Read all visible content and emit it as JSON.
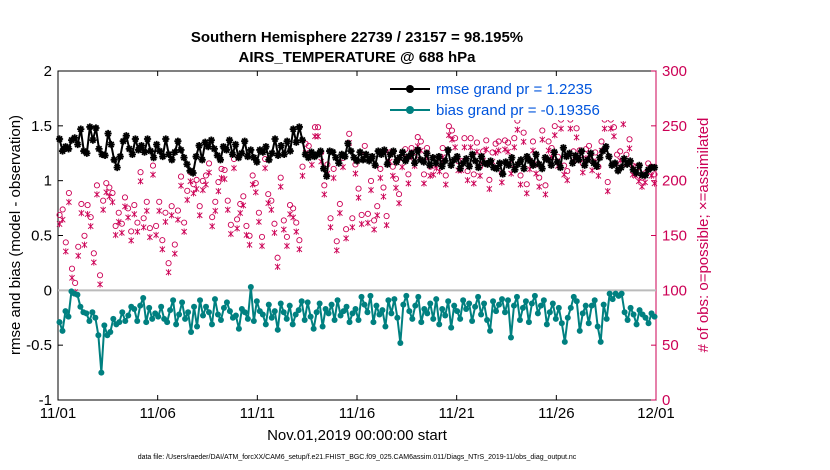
{
  "chart_data": {
    "type": "line",
    "title_line1": "Southern Hemisphere 22739 / 23157 = 98.195%",
    "title_line2": "AIRS_TEMPERATURE @ 688 hPa",
    "xlabel": "Nov.01,2019 00:00:00 start",
    "ylabel_left": "rmse and bias (model - observation)",
    "ylabel_right": "# of obs: o=possible; ×=assimilated",
    "footer": "data file: /Users/raeder/DAI/ATM_forcXX/CAM6_setup/f.e21.FHIST_BGC.f09_025.CAM6assim.011/Diags_NTrS_2019-11/obs_diag_output.nc",
    "x_ticks": [
      "11/01",
      "11/06",
      "11/11",
      "11/16",
      "11/21",
      "11/26",
      "12/01"
    ],
    "xlim": [
      0,
      30
    ],
    "ylim_left": [
      -1,
      2
    ],
    "y_ticks_left": [
      "-1",
      "-0.5",
      "0",
      "0.5",
      "1",
      "1.5",
      "2"
    ],
    "ylim_right": [
      0,
      300
    ],
    "y_ticks_right": [
      "0",
      "50",
      "100",
      "150",
      "200",
      "250",
      "300"
    ],
    "colors": {
      "rmse": "#000000",
      "bias": "#008080",
      "obs": "#cc0055",
      "zero_line": "#bbbbbb",
      "legend_text": "#0055dd"
    },
    "series": [
      {
        "name": "rmse grand pr = 1.2235",
        "axis": "left",
        "values": [
          1.38,
          1.27,
          1.31,
          1.29,
          1.37,
          1.39,
          1.33,
          1.47,
          1.27,
          1.25,
          1.49,
          1.37,
          1.48,
          1.29,
          1.24,
          1.23,
          1.43,
          1.33,
          1.19,
          1.12,
          1.22,
          1.36,
          1.41,
          1.29,
          1.24,
          1.38,
          1.28,
          1.32,
          1.26,
          1.38,
          1.27,
          1.21,
          1.33,
          1.27,
          1.22,
          1.38,
          1.24,
          1.19,
          1.26,
          1.36,
          1.28,
          1.21,
          1.15,
          1.09,
          1.07,
          1.22,
          1.32,
          1.19,
          1.35,
          1.31,
          1.37,
          1.29,
          1.23,
          1.19,
          1.31,
          1.28,
          1.37,
          1.24,
          1.33,
          1.21,
          1.25,
          1.36,
          1.22,
          1.28,
          1.21,
          1.17,
          1.28,
          1.26,
          1.31,
          1.19,
          1.25,
          1.38,
          1.23,
          1.32,
          1.24,
          1.36,
          1.27,
          1.47,
          1.35,
          1.49,
          1.37,
          1.24,
          1.21,
          1.26,
          1.22,
          1.24,
          1.27,
          1.11,
          1.04,
          1.27,
          1.26,
          1.21,
          1.16,
          1.24,
          1.22,
          1.34,
          1.27,
          1.21,
          1.18,
          1.26,
          1.19,
          1.24,
          1.18,
          1.22,
          1.14,
          1.27,
          1.24,
          1.28,
          1.15,
          1.24,
          1.27,
          1.17,
          1.21,
          1.26,
          1.18,
          1.22,
          1.25,
          1.16,
          1.28,
          1.19,
          1.17,
          1.25,
          1.14,
          1.21,
          1.16,
          1.22,
          1.13,
          1.18,
          1.28,
          1.14,
          1.19,
          1.22,
          1.11,
          1.16,
          1.2,
          1.13,
          1.24,
          1.18,
          1.12,
          1.22,
          1.16,
          1.15,
          1.18,
          1.12,
          1.11,
          1.16,
          1.06,
          1.17,
          1.14,
          1.21,
          1.1,
          1.15,
          1.19,
          1.11,
          1.22,
          1.18,
          1.14,
          1.24,
          1.15,
          1.11,
          1.21,
          1.19,
          1.14,
          1.26,
          1.17,
          1.12,
          1.3,
          1.22,
          1.25,
          1.16,
          1.23,
          1.19,
          1.27,
          1.14,
          1.19,
          1.25,
          1.16,
          1.13,
          1.21,
          1.27,
          1.31,
          1.22,
          1.14,
          1.16,
          1.09,
          1.12,
          1.2,
          1.15,
          1.18,
          1.1,
          1.07,
          1.14,
          1.05,
          1.05,
          1.1,
          1.12,
          1.12
        ]
      },
      {
        "name": "bias grand pr = -0.19356",
        "axis": "left",
        "values": [
          -0.29,
          -0.37,
          -0.19,
          -0.24,
          -0.01,
          -0.03,
          -0.04,
          -0.15,
          -0.2,
          -0.21,
          -0.28,
          -0.2,
          -0.25,
          -0.41,
          -0.75,
          -0.32,
          -0.41,
          -0.38,
          -0.26,
          -0.31,
          -0.29,
          -0.2,
          -0.28,
          -0.23,
          -0.15,
          -0.17,
          -0.28,
          -0.14,
          -0.07,
          -0.29,
          -0.16,
          -0.26,
          -0.21,
          -0.24,
          -0.15,
          -0.26,
          -0.29,
          -0.18,
          -0.09,
          -0.31,
          -0.22,
          -0.11,
          -0.26,
          -0.2,
          -0.38,
          -0.15,
          -0.33,
          -0.09,
          -0.23,
          -0.15,
          -0.2,
          -0.31,
          -0.08,
          -0.22,
          -0.27,
          -0.16,
          -0.11,
          -0.19,
          -0.25,
          -0.23,
          -0.35,
          -0.17,
          -0.2,
          -0.26,
          0.03,
          -0.28,
          -0.1,
          -0.19,
          -0.22,
          -0.31,
          -0.13,
          -0.25,
          -0.19,
          -0.36,
          -0.12,
          -0.2,
          -0.26,
          -0.14,
          -0.31,
          -0.22,
          -0.18,
          -0.1,
          -0.27,
          -0.11,
          -0.24,
          -0.35,
          -0.2,
          -0.12,
          -0.33,
          -0.17,
          -0.21,
          -0.13,
          -0.27,
          -0.09,
          -0.23,
          -0.19,
          -0.15,
          -0.29,
          -0.21,
          -0.17,
          -0.27,
          -0.06,
          -0.13,
          -0.2,
          -0.05,
          -0.29,
          -0.14,
          -0.22,
          -0.18,
          -0.33,
          -0.09,
          -0.21,
          -0.08,
          -0.25,
          -0.48,
          -0.13,
          -0.05,
          -0.19,
          -0.26,
          -0.14,
          -0.06,
          -0.29,
          -0.17,
          -0.21,
          -0.12,
          -0.26,
          -0.08,
          -0.31,
          -0.17,
          -0.23,
          -0.1,
          -0.34,
          -0.14,
          -0.19,
          -0.26,
          -0.09,
          -0.17,
          -0.12,
          -0.28,
          -0.15,
          -0.06,
          -0.22,
          -0.12,
          -0.27,
          -0.37,
          -0.1,
          -0.19,
          -0.13,
          -0.08,
          -0.2,
          -0.09,
          -0.43,
          -0.14,
          -0.06,
          -0.27,
          -0.16,
          -0.1,
          -0.29,
          -0.12,
          -0.05,
          -0.21,
          -0.14,
          -0.09,
          -0.31,
          -0.2,
          -0.12,
          -0.26,
          -0.16,
          -0.3,
          -0.47,
          -0.25,
          -0.16,
          -0.06,
          -0.1,
          -0.37,
          -0.21,
          -0.14,
          -0.3,
          -0.14,
          -0.09,
          -0.33,
          -0.47,
          -0.13,
          -0.26,
          -0.03,
          -0.08,
          -0.03,
          -0.05,
          -0.03,
          -0.2,
          -0.27,
          -0.16,
          -0.22,
          -0.31,
          -0.18,
          -0.22,
          -0.25,
          -0.3,
          -0.21,
          -0.24
        ]
      },
      {
        "name": "possible",
        "axis": "right",
        "marker": "o",
        "values": [
          166,
          171,
          141,
          186,
          117,
          104,
          137,
          176,
          147,
          175,
          164,
          131,
          193,
          111,
          179,
          195,
          191,
          186,
          156,
          168,
          158,
          182,
          172,
          151,
          175,
          159,
          205,
          163,
          178,
          154,
          211,
          156,
          178,
          143,
          168,
          122,
          174,
          139,
          170,
          201,
          159,
          188,
          205,
          194,
          198,
          174,
          197,
          202,
          213,
          164,
          178,
          196,
          208,
          207,
          179,
          157,
          217,
          162,
          176,
          183,
          156,
          147,
          202,
          195,
          168,
          146,
          217,
          185,
          179,
          158,
          127,
          200,
          161,
          146,
          175,
          172,
          159,
          143,
          210,
          231,
          229,
          220,
          246,
          246,
          223,
          193,
          212,
          163,
          208,
          142,
          176,
          218,
          153,
          240,
          163,
          212,
          190,
          166,
          229,
          167,
          197,
          161,
          174,
          208,
          191,
          165,
          223,
          210,
          199,
          185,
          218,
          226,
          203,
          227,
          219,
          237,
          233,
          203,
          227,
          210,
          211,
          217,
          214,
          227,
          202,
          247,
          243,
          236,
          215,
          215,
          236,
          206,
          236,
          203,
          232,
          210,
          224,
          234,
          198,
          223,
          231,
          233,
          204,
          234,
          232,
          212,
          236,
          252,
          202,
          241,
          194,
          216,
          233,
          212,
          200,
          243,
          193,
          233,
          227,
          247,
          219,
          253,
          211,
          206,
          253,
          224,
          245,
          225,
          213,
          226,
          229,
          215,
          223,
          210,
          233,
          253,
          196,
          253,
          246,
          221,
          224,
          257,
          221,
          235,
          211,
          210,
          205,
          200,
          204,
          213,
          210,
          203
        ]
      },
      {
        "name": "assimilated",
        "axis": "right",
        "marker": "x",
        "values": [
          165,
          169,
          140,
          185,
          116,
          103,
          136,
          175,
          146,
          174,
          163,
          130,
          192,
          110,
          178,
          194,
          190,
          185,
          155,
          167,
          157,
          181,
          171,
          150,
          174,
          158,
          204,
          162,
          177,
          153,
          210,
          155,
          177,
          142,
          167,
          121,
          173,
          138,
          169,
          200,
          158,
          187,
          204,
          193,
          197,
          173,
          196,
          201,
          212,
          163,
          177,
          195,
          207,
          206,
          178,
          156,
          216,
          161,
          175,
          182,
          155,
          146,
          201,
          194,
          167,
          145,
          216,
          184,
          178,
          157,
          126,
          199,
          160,
          145,
          174,
          171,
          158,
          142,
          209,
          230,
          228,
          219,
          245,
          245,
          222,
          192,
          211,
          162,
          207,
          141,
          175,
          217,
          152,
          239,
          162,
          211,
          189,
          165,
          228,
          166,
          196,
          160,
          173,
          207,
          190,
          164,
          222,
          209,
          198,
          184,
          217,
          225,
          202,
          226,
          218,
          236,
          232,
          202,
          226,
          209,
          210,
          216,
          213,
          226,
          201,
          246,
          242,
          235,
          214,
          214,
          235,
          205,
          235,
          202,
          231,
          209,
          223,
          233,
          197,
          222,
          230,
          232,
          203,
          233,
          231,
          211,
          235,
          251,
          201,
          240,
          193,
          215,
          232,
          211,
          199,
          242,
          192,
          232,
          226,
          246,
          218,
          252,
          210,
          205,
          252,
          223,
          244,
          224,
          212,
          225,
          228,
          214,
          222,
          209,
          232,
          252,
          195,
          252,
          245,
          220,
          223,
          256,
          220,
          234,
          210,
          209,
          204,
          199,
          203,
          212,
          209,
          202
        ]
      }
    ],
    "legend": [
      "rmse grand pr = 1.2235",
      "bias grand pr = -0.19356"
    ],
    "legend_position": "top-right",
    "grid": false
  }
}
